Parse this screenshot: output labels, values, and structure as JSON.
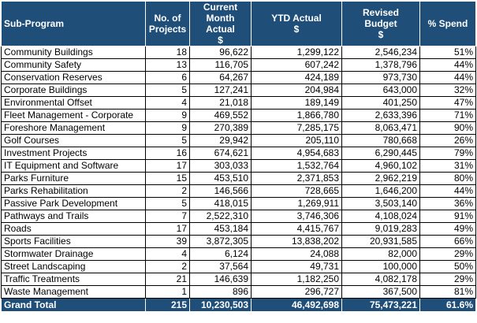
{
  "table": {
    "headers": [
      {
        "line1": "Sub-Program",
        "line2": ""
      },
      {
        "line1": "No. of",
        "line2": "Projects"
      },
      {
        "line1": "Current",
        "line2": "Month Actual",
        "line3": "$"
      },
      {
        "line1": "YTD Actual",
        "line2": "",
        "line3": "$"
      },
      {
        "line1": "Revised",
        "line2": "Budget",
        "line3": "$"
      },
      {
        "line1": "% Spend",
        "line2": ""
      }
    ],
    "rows": [
      [
        "Community Buildings",
        "18",
        "96,622",
        "1,299,122",
        "2,546,234",
        "51%"
      ],
      [
        "Community Safety",
        "13",
        "116,705",
        "607,242",
        "1,378,796",
        "44%"
      ],
      [
        "Conservation Reserves",
        "6",
        "64,267",
        "424,189",
        "973,730",
        "44%"
      ],
      [
        "Corporate Buildings",
        "5",
        "127,241",
        "204,984",
        "643,000",
        "32%"
      ],
      [
        "Environmental Offset",
        "4",
        "21,018",
        "189,149",
        "401,250",
        "47%"
      ],
      [
        "Fleet Management - Corporate",
        "9",
        "469,552",
        "1,866,780",
        "2,633,396",
        "71%"
      ],
      [
        "Foreshore Management",
        "9",
        "270,389",
        "7,285,175",
        "8,063,471",
        "90%"
      ],
      [
        "Golf Courses",
        "5",
        "29,942",
        "205,110",
        "780,668",
        "26%"
      ],
      [
        "Investment Projects",
        "16",
        "674,621",
        "4,954,683",
        "6,290,445",
        "79%"
      ],
      [
        "IT Equipment and Software",
        "17",
        "303,033",
        "1,532,764",
        "4,960,102",
        "31%"
      ],
      [
        "Parks Furniture",
        "15",
        "453,510",
        "2,371,853",
        "2,962,219",
        "80%"
      ],
      [
        "Parks Rehabilitation",
        "2",
        "146,566",
        "728,665",
        "1,646,200",
        "44%"
      ],
      [
        "Passive Park Development",
        "5",
        "418,015",
        "1,269,911",
        "3,503,140",
        "36%"
      ],
      [
        "Pathways and Trails",
        "7",
        "2,522,310",
        "3,746,306",
        "4,108,024",
        "91%"
      ],
      [
        "Roads",
        "17",
        "453,184",
        "4,415,767",
        "9,019,283",
        "49%"
      ],
      [
        "Sports Facilities",
        "39",
        "3,872,305",
        "13,838,202",
        "20,931,585",
        "66%"
      ],
      [
        "Stormwater Drainage",
        "4",
        "6,124",
        "24,088",
        "82,000",
        "29%"
      ],
      [
        "Street Landscaping",
        "2",
        "37,564",
        "49,731",
        "100,000",
        "50%"
      ],
      [
        "Traffic Treatments",
        "21",
        "146,639",
        "1,182,250",
        "4,082,178",
        "29%"
      ],
      [
        "Waste Management",
        "1",
        "896",
        "296,727",
        "367,500",
        "81%"
      ]
    ],
    "total": [
      "Grand Total",
      "215",
      "10,230,503",
      "46,492,698",
      "75,473,221",
      "61.6%"
    ]
  },
  "colors": {
    "header_bg": "#1f4e79",
    "header_text": "#ffffff",
    "grid": "#000000"
  }
}
